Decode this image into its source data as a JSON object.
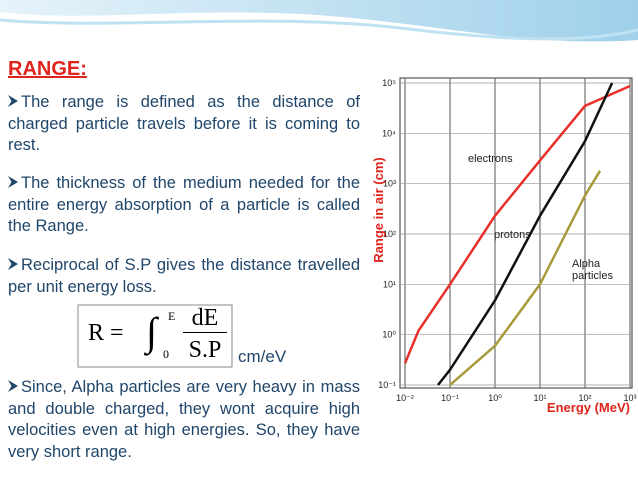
{
  "title": "RANGE:",
  "paragraphs": [
    "The range is defined as the distance of charged particle travels before it is coming to rest.",
    "The thickness of the medium needed for the entire energy absorption of a particle is called the Range.",
    "Reciprocal of S.P gives the distance travelled per unit energy loss.",
    "Since, Alpha particles are very heavy in mass and double charged, they wont acquire high velocities even at high energies. So, they have very short range."
  ],
  "formula": {
    "lhs": "R =",
    "integral": "∫",
    "upper": "E",
    "lower": "0",
    "numerator": "dE",
    "denominator": "S.P",
    "unit": "cm/eV"
  },
  "chart_data": {
    "type": "line",
    "x_label": "Energy (MeV)",
    "y_label": "Range in air (cm)",
    "log_x": true,
    "log_y": true,
    "grid": true,
    "xlim": [
      0.01,
      1000
    ],
    "ylim": [
      0.1,
      100000
    ],
    "xticks": [
      {
        "value": 0.01,
        "label": "10⁻²"
      },
      {
        "value": 0.1,
        "label": "10⁻¹"
      },
      {
        "value": 1,
        "label": "10⁰"
      },
      {
        "value": 10,
        "label": "10¹"
      },
      {
        "value": 100,
        "label": "10²"
      },
      {
        "value": 1000,
        "label": "10³"
      }
    ],
    "yticks": [
      {
        "value": 0.1,
        "label": "10⁻¹"
      },
      {
        "value": 1,
        "label": "10⁰"
      },
      {
        "value": 10,
        "label": "10¹"
      },
      {
        "value": 100,
        "label": "10²"
      },
      {
        "value": 1000,
        "label": "10³"
      },
      {
        "value": 10000,
        "label": "10⁴"
      },
      {
        "value": 100000,
        "label": "10⁵"
      }
    ],
    "series": [
      {
        "name": "electrons",
        "color": "#e8302a",
        "x": [
          0.01,
          0.02,
          0.1,
          1,
          10,
          100,
          1000
        ],
        "values": [
          0.27,
          1.2,
          10,
          230,
          2900,
          35000,
          87000
        ]
      },
      {
        "name": "protons",
        "color": "#111111",
        "x": [
          0.054,
          0.1,
          1,
          10,
          100,
          400
        ],
        "values": [
          0.1,
          0.2,
          4.8,
          230,
          7000,
          100000
        ]
      },
      {
        "name": "Alpha particles",
        "color": "#a89a3a",
        "x": [
          0.1,
          1,
          10,
          100,
          215
        ],
        "values": [
          0.1,
          0.6,
          10,
          580,
          1800
        ]
      }
    ]
  }
}
